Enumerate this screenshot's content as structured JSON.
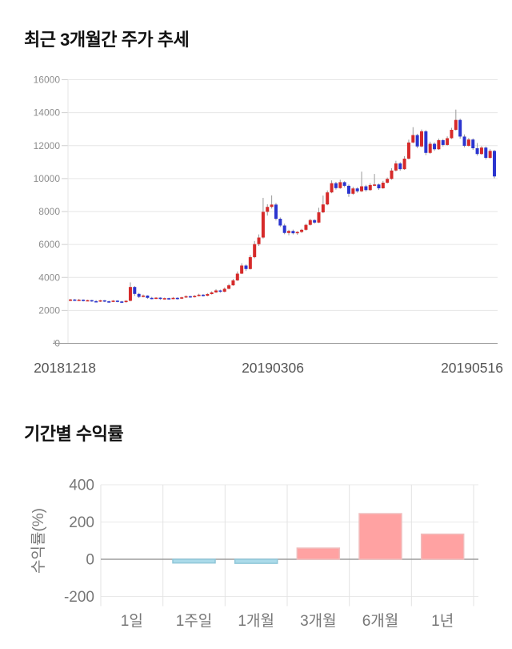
{
  "sections": {
    "price_chart_title": "최근 3개월간 주가 추세",
    "returns_chart_title": "기간별 수익률"
  },
  "colors": {
    "candle_up": "#d62a2a",
    "candle_down": "#2b35cf",
    "candle_wick": "#999999",
    "grid_line": "#e6e6e6",
    "axis_line": "#999999",
    "tick_label": "#8e8e8e",
    "x_label": "#555555",
    "bar_positive": "#ffa2a2",
    "bar_positive_border": "#f0bdbd",
    "bar_negative": "#abdbea",
    "bar_negative_border": "#8fc6d8",
    "returns_grid": "#e9e9e9",
    "returns_zero_line": "#9e9e9e",
    "returns_label": "#777777"
  },
  "chart_data": [
    {
      "type": "candlestick",
      "title": "최근 3개월간 주가 추세",
      "ylabel": "",
      "xlabel": "",
      "ylim": [
        0,
        16000
      ],
      "y_ticks": [
        0,
        2000,
        4000,
        6000,
        8000,
        10000,
        12000,
        14000,
        16000
      ],
      "x_tick_labels": [
        "20181218",
        "20190306",
        "20190516"
      ],
      "legend": "none",
      "grid": "horizontal",
      "candles_ohlc": [
        [
          2620,
          2700,
          2560,
          2660
        ],
        [
          2660,
          2690,
          2570,
          2600
        ],
        [
          2600,
          2700,
          2580,
          2650
        ],
        [
          2650,
          2670,
          2540,
          2580
        ],
        [
          2580,
          2650,
          2550,
          2620
        ],
        [
          2620,
          2640,
          2520,
          2560
        ],
        [
          2560,
          2620,
          2500,
          2540
        ],
        [
          2540,
          2640,
          2510,
          2610
        ],
        [
          2610,
          2630,
          2500,
          2550
        ],
        [
          2550,
          2590,
          2470,
          2520
        ],
        [
          2520,
          2620,
          2500,
          2590
        ],
        [
          2590,
          2610,
          2490,
          2540
        ],
        [
          2540,
          2580,
          2450,
          2500
        ],
        [
          2500,
          2620,
          2470,
          2580
        ],
        [
          2580,
          3700,
          2550,
          3420
        ],
        [
          3420,
          3480,
          2880,
          3000
        ],
        [
          3000,
          3060,
          2750,
          2820
        ],
        [
          2820,
          2960,
          2790,
          2900
        ],
        [
          2900,
          2920,
          2700,
          2760
        ],
        [
          2760,
          2820,
          2670,
          2710
        ],
        [
          2710,
          2800,
          2690,
          2770
        ],
        [
          2770,
          2790,
          2640,
          2690
        ],
        [
          2690,
          2780,
          2660,
          2740
        ],
        [
          2740,
          2770,
          2650,
          2700
        ],
        [
          2700,
          2810,
          2680,
          2760
        ],
        [
          2760,
          2790,
          2660,
          2710
        ],
        [
          2710,
          2830,
          2690,
          2790
        ],
        [
          2790,
          2910,
          2750,
          2860
        ],
        [
          2860,
          2890,
          2760,
          2800
        ],
        [
          2800,
          2930,
          2780,
          2880
        ],
        [
          2880,
          3010,
          2850,
          2950
        ],
        [
          2950,
          2990,
          2840,
          2890
        ],
        [
          2890,
          3050,
          2860,
          2990
        ],
        [
          2990,
          3160,
          2960,
          3090
        ],
        [
          3090,
          3290,
          3060,
          3210
        ],
        [
          3210,
          3260,
          3070,
          3130
        ],
        [
          3130,
          3390,
          3100,
          3310
        ],
        [
          3310,
          3610,
          3280,
          3520
        ],
        [
          3520,
          3910,
          3490,
          3820
        ],
        [
          3820,
          4360,
          3790,
          4230
        ],
        [
          4230,
          4860,
          4200,
          4720
        ],
        [
          4720,
          4790,
          4390,
          4510
        ],
        [
          4510,
          5360,
          4480,
          5230
        ],
        [
          5230,
          6210,
          5160,
          6020
        ],
        [
          6020,
          6610,
          5910,
          6420
        ],
        [
          6420,
          8830,
          6360,
          7980
        ],
        [
          7980,
          8440,
          7760,
          8280
        ],
        [
          8280,
          8980,
          8180,
          8420
        ],
        [
          8420,
          8520,
          7460,
          7560
        ],
        [
          7560,
          7640,
          7060,
          7150
        ],
        [
          7150,
          7260,
          6620,
          6700
        ],
        [
          6700,
          6890,
          6560,
          6820
        ],
        [
          6820,
          6900,
          6610,
          6680
        ],
        [
          6680,
          6810,
          6590,
          6760
        ],
        [
          6760,
          6950,
          6700,
          6890
        ],
        [
          6890,
          7260,
          6840,
          7190
        ],
        [
          7190,
          7560,
          7150,
          7480
        ],
        [
          7480,
          7530,
          7260,
          7330
        ],
        [
          7330,
          8230,
          7300,
          7950
        ],
        [
          7950,
          8970,
          7900,
          8430
        ],
        [
          8430,
          9280,
          8380,
          9160
        ],
        [
          9160,
          9890,
          9110,
          9720
        ],
        [
          9720,
          9800,
          9330,
          9420
        ],
        [
          9420,
          9930,
          9380,
          9780
        ],
        [
          9780,
          9840,
          9470,
          9560
        ],
        [
          9560,
          9640,
          8890,
          9080
        ],
        [
          9080,
          9500,
          9010,
          9400
        ],
        [
          9400,
          9480,
          9140,
          9230
        ],
        [
          9230,
          10420,
          9180,
          9530
        ],
        [
          9530,
          9620,
          9210,
          9300
        ],
        [
          9300,
          9720,
          9260,
          9610
        ],
        [
          9610,
          10280,
          9540,
          9640
        ],
        [
          9640,
          9700,
          9310,
          9410
        ],
        [
          9410,
          9860,
          9380,
          9750
        ],
        [
          9750,
          10060,
          9700,
          9980
        ],
        [
          9980,
          10630,
          9930,
          10490
        ],
        [
          10490,
          11080,
          10430,
          10920
        ],
        [
          10920,
          11000,
          10480,
          10570
        ],
        [
          10570,
          11360,
          10530,
          11210
        ],
        [
          11210,
          12360,
          11160,
          12190
        ],
        [
          12190,
          13120,
          12140,
          12640
        ],
        [
          12640,
          12720,
          11840,
          11950
        ],
        [
          11950,
          12980,
          11900,
          12870
        ],
        [
          12870,
          12940,
          11420,
          11560
        ],
        [
          11560,
          12240,
          11500,
          12110
        ],
        [
          12110,
          12200,
          11680,
          11780
        ],
        [
          11780,
          12430,
          11740,
          12330
        ],
        [
          12330,
          12410,
          11950,
          12040
        ],
        [
          12040,
          12560,
          12000,
          12450
        ],
        [
          12450,
          13080,
          12400,
          12960
        ],
        [
          12960,
          14190,
          12910,
          13560
        ],
        [
          13560,
          13640,
          12420,
          12550
        ],
        [
          12550,
          12680,
          11890,
          11990
        ],
        [
          11990,
          12470,
          11940,
          12370
        ],
        [
          12370,
          12440,
          11740,
          11840
        ],
        [
          11840,
          12160,
          11390,
          11490
        ],
        [
          11490,
          11970,
          11450,
          11880
        ],
        [
          11880,
          11950,
          11160,
          11260
        ],
        [
          11260,
          11780,
          11210,
          11680
        ],
        [
          11680,
          11740,
          10020,
          10130
        ]
      ]
    },
    {
      "type": "bar",
      "title": "기간별 수익률",
      "ylabel": "수익률(%)",
      "xlabel": "",
      "categories": [
        "1일",
        "1주일",
        "1개월",
        "3개월",
        "6개월",
        "1년"
      ],
      "values": [
        0,
        -20,
        -22,
        60,
        245,
        135
      ],
      "y_ticks": [
        400,
        200,
        0,
        -200
      ],
      "ylim": [
        -280,
        400
      ],
      "legend": "none",
      "grid": "both"
    }
  ]
}
